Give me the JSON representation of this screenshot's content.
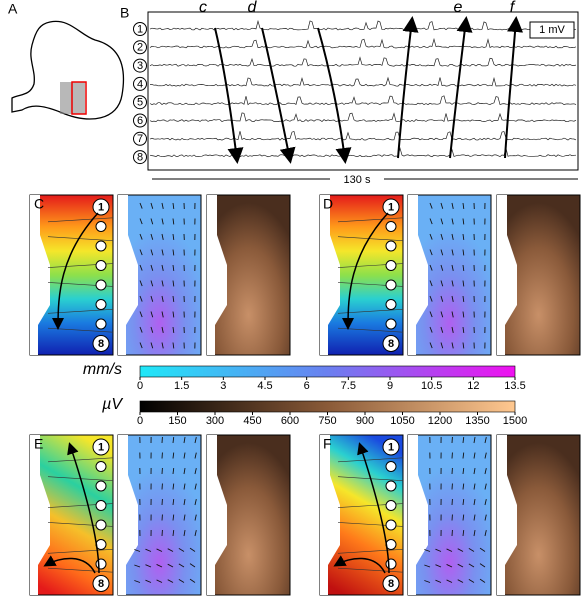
{
  "panel_labels": [
    "A",
    "B",
    "C",
    "D",
    "E",
    "F"
  ],
  "traces": {
    "channels": [
      "1",
      "2",
      "3",
      "4",
      "5",
      "6",
      "7",
      "8"
    ],
    "scale_bar": "1 mV",
    "wave_labels": [
      "c",
      "d",
      "e",
      "f"
    ],
    "duration": "130 s"
  },
  "maps": [
    {
      "top": "1",
      "bottom": "8"
    },
    {
      "top": "1",
      "bottom": "8"
    },
    {
      "top": "1",
      "bottom": "8"
    },
    {
      "top": "1",
      "bottom": "8"
    }
  ],
  "colorbars": [
    {
      "unit": "mm/s",
      "ticks": [
        0,
        1.5,
        3,
        4.5,
        6,
        7.5,
        9,
        10.5,
        12,
        13.5
      ]
    },
    {
      "unit": "µV",
      "ticks": [
        0,
        150,
        300,
        450,
        600,
        750,
        900,
        1050,
        1200,
        1350,
        1500
      ]
    }
  ]
}
